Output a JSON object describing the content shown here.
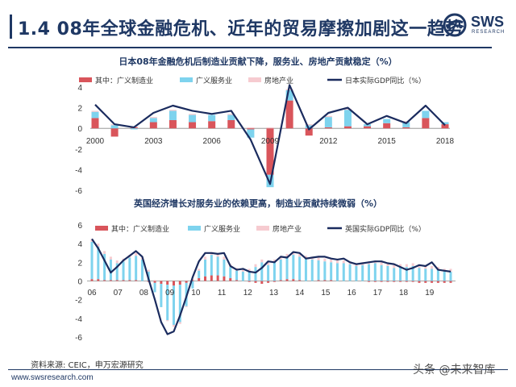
{
  "slide": {
    "title": "1.4 08年全球金融危机、近年的贸易摩擦加剧这一趋势",
    "logo_text": "SWS",
    "logo_sub": "RESEARCH",
    "source": "资料来源: CEIC，申万宏源研究",
    "url": "www.swsresearch.com",
    "watermark": "头条 @未来智库"
  },
  "colors": {
    "manufacturing": "#d9555b",
    "services": "#7ed3ee",
    "real_estate": "#f6cbd0",
    "gdp": "#1a2b5e",
    "title": "#1f3864"
  },
  "chart_data": [
    {
      "type": "bar",
      "title": "日本08年金融危机后制造业贡献下降，服务业、房地产贡献稳定（%）",
      "legend": [
        "其中：广义制造业",
        "广义服务业",
        "房地产业",
        "日本实际GDP同比（%）"
      ],
      "x": [
        2000,
        2001,
        2002,
        2003,
        2004,
        2005,
        2006,
        2007,
        2008,
        2009,
        2010,
        2011,
        2012,
        2013,
        2014,
        2015,
        2016,
        2017,
        2018
      ],
      "x_ticks": [
        "2000",
        "2003",
        "2006",
        "2009",
        "2012",
        "2015",
        "2018"
      ],
      "ylim": [
        -6,
        4
      ],
      "y_ticks": [
        "4",
        "2",
        "0",
        "-2",
        "-4",
        "-6"
      ],
      "grid": false,
      "series": [
        {
          "name": "其中：广义制造业",
          "kind": "bar",
          "values": [
            1.0,
            -0.8,
            0.1,
            0.6,
            0.8,
            0.6,
            0.7,
            0.8,
            -0.1,
            -4.5,
            2.7,
            -0.7,
            0.1,
            0.2,
            0.2,
            0.5,
            0.1,
            1.0,
            0.4
          ]
        },
        {
          "name": "广义服务业",
          "kind": "bar",
          "values": [
            0.6,
            0.3,
            -0.1,
            0.4,
            0.9,
            0.7,
            0.6,
            0.5,
            -0.8,
            -1.2,
            1.0,
            0.3,
            1.0,
            1.6,
            0.2,
            0.4,
            0.5,
            0.7,
            0.2
          ]
        },
        {
          "name": "房地产业",
          "kind": "bar",
          "values": [
            0.1,
            0.1,
            0.1,
            0.1,
            0.1,
            0.1,
            0.0,
            0.1,
            0.1,
            0.1,
            0.1,
            0.1,
            0.1,
            0.1,
            0.0,
            0.0,
            0.1,
            0.0,
            0.0
          ]
        },
        {
          "name": "日本实际GDP同比（%）",
          "kind": "line",
          "values": [
            2.3,
            0.4,
            0.1,
            1.5,
            2.2,
            1.7,
            1.4,
            1.7,
            -1.1,
            -5.4,
            4.2,
            -0.1,
            1.5,
            2.0,
            0.4,
            1.2,
            0.5,
            2.2,
            0.3
          ]
        }
      ]
    },
    {
      "type": "bar",
      "title": "英国经济增长对服务业的依赖更高，制造业贡献持续微弱（%）",
      "legend": [
        "其中：广义制造业",
        "广义服务业",
        "房地产业",
        "英国实际GDP同比（%）"
      ],
      "x_ticks": [
        "06",
        "07",
        "08",
        "09",
        "10",
        "11",
        "12",
        "13",
        "14",
        "15",
        "16",
        "17",
        "18",
        "19"
      ],
      "ylim": [
        -6,
        6
      ],
      "y_ticks": [
        "6",
        "4",
        "2",
        "0",
        "-2",
        "-4",
        "-6"
      ],
      "grid": false,
      "series": [
        {
          "name": "其中：广义制造业",
          "kind": "bar",
          "values": [
            0.2,
            0.2,
            0.1,
            0.1,
            0.1,
            0.1,
            0.1,
            0.1,
            0.0,
            -0.1,
            -0.2,
            -0.3,
            -0.4,
            -0.5,
            -0.4,
            -0.2,
            0.1,
            0.3,
            0.5,
            0.6,
            0.6,
            0.5,
            0.3,
            0.1,
            0.0,
            -0.1,
            -0.2,
            -0.3,
            -0.2,
            -0.1,
            0.1,
            0.2,
            0.2,
            0.1,
            0.0,
            0.0,
            0.1,
            0.1,
            0.1,
            0.0,
            0.0,
            0.0,
            0.0,
            0.0,
            -0.1,
            -0.1,
            -0.1,
            -0.1,
            -0.1,
            -0.1,
            -0.1,
            -0.1,
            -0.2,
            -0.2,
            -0.2,
            -0.2,
            -0.2,
            -0.2
          ]
        },
        {
          "name": "广义服务业",
          "kind": "bar",
          "values": [
            4.0,
            3.5,
            2.8,
            2.2,
            1.8,
            2.0,
            2.4,
            2.6,
            2.3,
            1.0,
            -1.0,
            -2.5,
            -3.8,
            -4.2,
            -4.0,
            -2.5,
            -0.8,
            0.8,
            1.8,
            2.2,
            2.0,
            1.8,
            1.2,
            1.0,
            1.0,
            1.0,
            1.5,
            2.0,
            1.7,
            2.0,
            2.2,
            2.4,
            2.6,
            2.5,
            2.4,
            2.3,
            2.1,
            2.0,
            1.9,
            1.9,
            1.9,
            1.8,
            1.6,
            1.7,
            1.8,
            1.9,
            1.7,
            1.6,
            1.4,
            1.5,
            1.5,
            1.6,
            1.4,
            1.3,
            1.3,
            1.2,
            1.0,
            1.0
          ]
        },
        {
          "name": "房地产业",
          "kind": "bar",
          "values": [
            0.3,
            0.3,
            0.3,
            0.3,
            0.3,
            0.3,
            0.3,
            0.3,
            0.2,
            0.2,
            0.1,
            0.0,
            -0.1,
            -0.2,
            -0.2,
            -0.1,
            0.1,
            0.2,
            0.3,
            0.3,
            0.3,
            0.3,
            0.3,
            0.3,
            0.3,
            0.3,
            0.3,
            0.3,
            0.3,
            0.3,
            0.3,
            0.3,
            0.3,
            0.3,
            0.3,
            0.3,
            0.3,
            0.3,
            0.3,
            0.3,
            0.3,
            0.3,
            0.3,
            0.3,
            0.3,
            0.3,
            0.3,
            0.3,
            0.3,
            0.3,
            0.3,
            0.3,
            0.3,
            0.3,
            0.3,
            0.3,
            0.3,
            0.3
          ]
        },
        {
          "name": "英国实际GDP同比（%）",
          "kind": "line",
          "values": [
            4.5,
            3.5,
            2.2,
            0.9,
            1.5,
            2.2,
            2.7,
            3.2,
            2.6,
            0.2,
            -2.0,
            -4.4,
            -5.7,
            -5.4,
            -3.7,
            -1.7,
            0.4,
            2.1,
            3.0,
            3.0,
            2.9,
            3.0,
            1.6,
            1.2,
            1.3,
            1.0,
            0.9,
            1.4,
            2.1,
            2.0,
            2.6,
            2.5,
            3.1,
            3.0,
            2.4,
            2.5,
            2.6,
            2.6,
            2.4,
            2.3,
            2.4,
            2.0,
            1.8,
            1.9,
            2.0,
            2.1,
            2.1,
            1.9,
            1.8,
            1.5,
            1.2,
            1.4,
            1.7,
            1.6,
            2.0,
            1.2,
            1.1,
            1.0
          ]
        }
      ]
    }
  ]
}
